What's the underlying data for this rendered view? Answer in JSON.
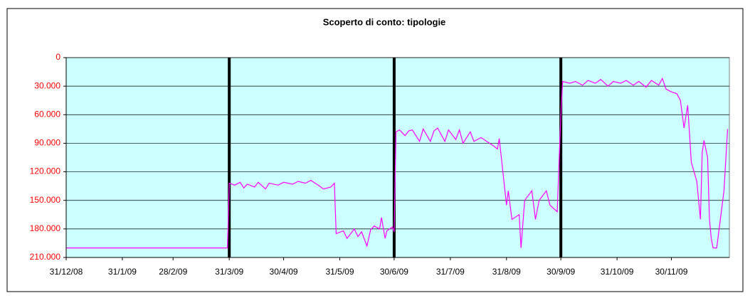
{
  "chart_data": {
    "type": "line",
    "title": "Scoperto di conto: tipologie",
    "x": [
      "2008-12-31",
      "2009-03-30",
      "2009-03-31",
      "2009-04-03",
      "2009-04-06",
      "2009-04-08",
      "2009-04-10",
      "2009-04-14",
      "2009-04-16",
      "2009-04-20",
      "2009-04-22",
      "2009-04-27",
      "2009-04-30",
      "2009-05-05",
      "2009-05-08",
      "2009-05-12",
      "2009-05-15",
      "2009-05-19",
      "2009-05-22",
      "2009-05-26",
      "2009-05-28",
      "2009-05-29",
      "2009-06-02",
      "2009-06-04",
      "2009-06-08",
      "2009-06-10",
      "2009-06-12",
      "2009-06-15",
      "2009-06-17",
      "2009-06-19",
      "2009-06-22",
      "2009-06-23",
      "2009-06-25",
      "2009-06-26",
      "2009-06-29",
      "2009-06-30",
      "2009-07-01",
      "2009-07-03",
      "2009-07-06",
      "2009-07-08",
      "2009-07-10",
      "2009-07-14",
      "2009-07-16",
      "2009-07-20",
      "2009-07-22",
      "2009-07-24",
      "2009-07-28",
      "2009-07-30",
      "2009-08-03",
      "2009-08-05",
      "2009-08-07",
      "2009-08-11",
      "2009-08-13",
      "2009-08-17",
      "2009-08-20",
      "2009-08-24",
      "2009-08-26",
      "2009-08-27",
      "2009-08-31",
      "2009-09-01",
      "2009-09-03",
      "2009-09-07",
      "2009-09-08",
      "2009-09-10",
      "2009-09-14",
      "2009-09-16",
      "2009-09-18",
      "2009-09-22",
      "2009-09-24",
      "2009-09-28",
      "2009-09-29",
      "2009-09-30",
      "2009-10-01",
      "2009-10-05",
      "2009-10-08",
      "2009-10-12",
      "2009-10-15",
      "2009-10-19",
      "2009-10-22",
      "2009-10-26",
      "2009-10-29",
      "2009-11-02",
      "2009-11-05",
      "2009-11-09",
      "2009-11-12",
      "2009-11-16",
      "2009-11-19",
      "2009-11-23",
      "2009-11-25",
      "2009-11-27",
      "2009-11-30",
      "2009-12-03",
      "2009-12-05",
      "2009-12-07",
      "2009-12-09",
      "2009-12-11",
      "2009-12-14",
      "2009-12-16",
      "2009-12-17",
      "2009-12-18",
      "2009-12-20",
      "2009-12-21",
      "2009-12-22",
      "2009-12-23",
      "2009-12-25",
      "2009-12-27",
      "2009-12-29",
      "2009-12-30",
      "2009-12-31"
    ],
    "values": [
      200000,
      200000,
      132000,
      134000,
      131000,
      137000,
      133000,
      136000,
      131000,
      138000,
      132000,
      134000,
      131000,
      133000,
      130000,
      132000,
      129000,
      134000,
      138000,
      136000,
      132000,
      185000,
      182000,
      190000,
      180000,
      188000,
      183000,
      198000,
      181000,
      177000,
      180000,
      168000,
      190000,
      182000,
      178000,
      183000,
      78000,
      76000,
      82000,
      77000,
      76000,
      88000,
      75000,
      88000,
      77000,
      74000,
      88000,
      76000,
      86000,
      76000,
      90000,
      78000,
      88000,
      84000,
      88000,
      93000,
      96000,
      85000,
      155000,
      140000,
      170000,
      165000,
      200000,
      150000,
      140000,
      170000,
      150000,
      140000,
      155000,
      162000,
      110000,
      60000,
      25000,
      27000,
      25000,
      29000,
      24000,
      27000,
      23000,
      30000,
      25000,
      27000,
      24000,
      29000,
      25000,
      31000,
      24000,
      29000,
      22000,
      33000,
      36000,
      38000,
      45000,
      74000,
      50000,
      110000,
      130000,
      170000,
      100000,
      87000,
      105000,
      170000,
      190000,
      200000,
      200000,
      170000,
      140000,
      108000,
      75000
    ],
    "color": "#ff00ff",
    "quarter_lines": [
      "2009-03-31",
      "2009-06-30",
      "2009-09-30"
    ],
    "ylim": [
      0,
      210000
    ],
    "y_inverted": true,
    "yticks": [
      0,
      {
        "value": 30000,
        "label": "30.000"
      },
      {
        "value": 60000,
        "label": "60.000"
      },
      {
        "value": 90000,
        "label": "90.000"
      },
      {
        "value": 120000,
        "label": "120.000"
      },
      {
        "value": 150000,
        "label": "150.000"
      },
      {
        "value": 180000,
        "label": "180.000"
      },
      {
        "value": 210000,
        "label": "210.000"
      }
    ],
    "xlim": [
      "2008-12-31",
      "2010-01-01"
    ],
    "xticks": [
      {
        "value": "2008-12-31",
        "label": "31/12/08"
      },
      {
        "value": "2009-01-31",
        "label": "31/1/09"
      },
      {
        "value": "2009-02-28",
        "label": "28/2/09"
      },
      {
        "value": "2009-03-31",
        "label": "31/3/09"
      },
      {
        "value": "2009-04-30",
        "label": "30/4/09"
      },
      {
        "value": "2009-05-31",
        "label": "31/5/09"
      },
      {
        "value": "2009-06-30",
        "label": "30/6/09"
      },
      {
        "value": "2009-07-31",
        "label": "31/7/09"
      },
      {
        "value": "2009-08-31",
        "label": "31/8/09"
      },
      {
        "value": "2009-09-30",
        "label": "30/9/09"
      },
      {
        "value": "2009-10-31",
        "label": "31/10/09"
      },
      {
        "value": "2009-11-30",
        "label": "30/11/09"
      }
    ],
    "grid": true,
    "plot_background": "#ccffff"
  }
}
